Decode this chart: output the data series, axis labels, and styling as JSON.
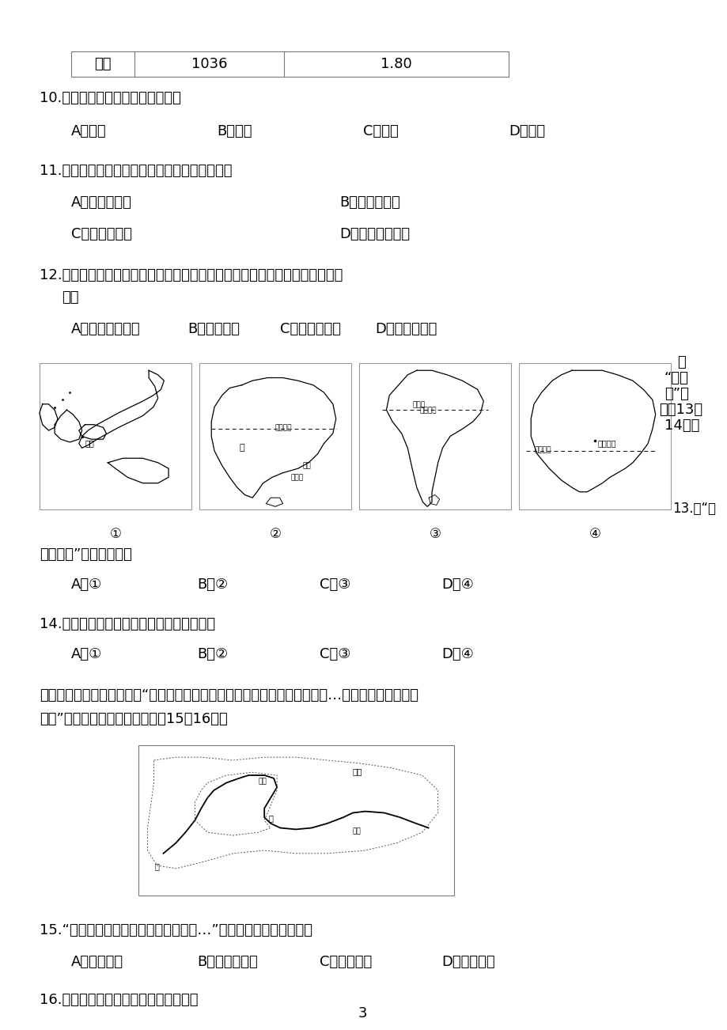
{
  "table_row": [
    "日本",
    "1036",
    "1.80"
  ],
  "q10": "10.四国中水稻总产量最多的国家是",
  "q10_options": [
    "A．泰国",
    "B．中国",
    "C．印度",
    "D．日本"
  ],
  "q11": "11.水稻单位面积产量泰国比日本高的主要原因是",
  "q11_options_left": [
    "A．人口数量多",
    "C．技术力量强"
  ],
  "q11_options_right": [
    "B．热量条件好",
    "D．机械化程度高"
  ],
  "q12": "12.我国西北地区也有水稻种植，和长江中下游平原相比，其水稻种植的优势条",
  "q12_cont": "件是",
  "q12_options": [
    "A．气温日较差大",
    "B．土壤肥沃",
    "C．劳动力丰富",
    "D．水资源充足"
  ],
  "map_labels": [
    "①",
    "②",
    "③",
    "④"
  ],
  "q13_cont": "界办公室”之称的国家是",
  "q13_options": [
    "A．①",
    "B．②",
    "C．③",
    "D．④"
  ],
  "q14": "14.拥有地球上面积最大的热带雨林的国家是",
  "q14_options": [
    "A．①",
    "B．②",
    "C．③",
    "D．④"
  ],
  "lyric": "《黄河妈妈》歌词中写道：“走出冰川的时候，你是那样的清亮，等你经过了…你就把那晶莹变成浑",
  "lyric2": "黄。”结合黄河流域示意图，回答15～16题。",
  "q15": "15.“走出冰川的时候，你是那样的清亮…”，此时黄河流淌在甲段的",
  "q15_options": [
    "A．青藏高原",
    "B．内蒙古高原",
    "C．黄土高原",
    "D．华北高原"
  ],
  "q16": "16.黄河河水在乙河段变成浑黄的原因是",
  "page_num": "3",
  "bg_color": "#ffffff",
  "text_color": "#000000"
}
